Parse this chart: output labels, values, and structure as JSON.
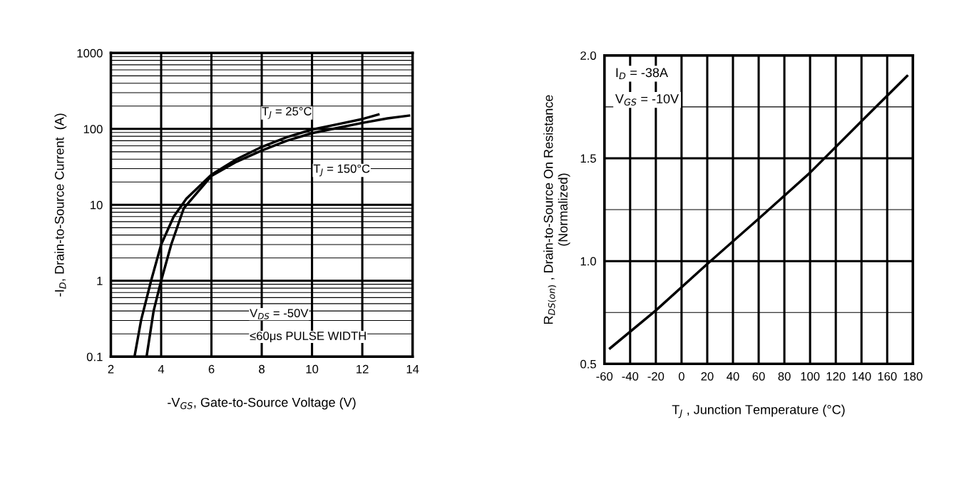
{
  "chart_data": [
    {
      "type": "line",
      "xlabel": "-V$_{GS}$, Gate-to-Source Voltage (V)",
      "ylabel": "-I$_{D}$, Drain-to-Source Current  (A)",
      "log": "y",
      "grid": true,
      "xlim": [
        2,
        14
      ],
      "xticks": [
        2,
        4,
        6,
        8,
        10,
        12,
        14
      ],
      "ylim": [
        0.1,
        1000
      ],
      "yticks": [
        0.1,
        1,
        10,
        100,
        1000
      ],
      "series": [
        {
          "name": "T$_{J}$ = 25°C",
          "color": "#000000",
          "x": [
            2.94,
            3.2,
            3.6,
            4.0,
            4.5,
            5,
            6,
            7,
            8,
            9,
            10,
            11,
            12,
            12.64
          ],
          "values": [
            0.1,
            0.3,
            1,
            3,
            7,
            12,
            25,
            40,
            58,
            78,
            98,
            115,
            135,
            155
          ]
        },
        {
          "name": "T$_{J}$ = 150°C",
          "color": "#000000",
          "x": [
            3.42,
            3.7,
            4.0,
            4.4,
            4.9,
            6,
            7,
            8,
            9,
            10,
            11,
            12,
            13,
            13.86
          ],
          "values": [
            0.1,
            0.4,
            1,
            3,
            9,
            24,
            37,
            52,
            70,
            88,
            103,
            120,
            138,
            150
          ]
        }
      ],
      "annotations": [
        "V$_{DS}$ = -50V",
        "≤60μs PULSE WIDTH"
      ]
    },
    {
      "type": "line",
      "xlabel": "T$_{J}$ , Junction Temperature (°C)",
      "ylabel": "R$_{DS(on)}$ , Drain-to-Source On Resistance\n(Normalized)",
      "grid": true,
      "xlim": [
        -60,
        180
      ],
      "xticks": [
        -60,
        -40,
        -20,
        0,
        20,
        40,
        60,
        80,
        100,
        120,
        140,
        160,
        180
      ],
      "ylim": [
        0.5,
        2.0
      ],
      "yticks": [
        {
          "value": 0.5,
          "label": "0.5"
        },
        {
          "value": 0.75,
          "label": null
        },
        {
          "value": 1.0,
          "label": "1.0"
        },
        {
          "value": 1.25,
          "label": null
        },
        {
          "value": 1.5,
          "label": "1.5"
        },
        {
          "value": 1.75,
          "label": null
        },
        {
          "value": 2.0,
          "label": "2.0"
        }
      ],
      "series": [
        {
          "color": "#000000",
          "x": [
            -55.6,
            -20,
            20,
            60,
            100,
            140,
            175.5
          ],
          "values": [
            0.576,
            0.76,
            0.986,
            1.206,
            1.43,
            1.68,
            1.9
          ]
        }
      ],
      "annotations": [
        "I$_{D}$ = -38A",
        "V$_{GS}$ = -10V"
      ]
    }
  ]
}
